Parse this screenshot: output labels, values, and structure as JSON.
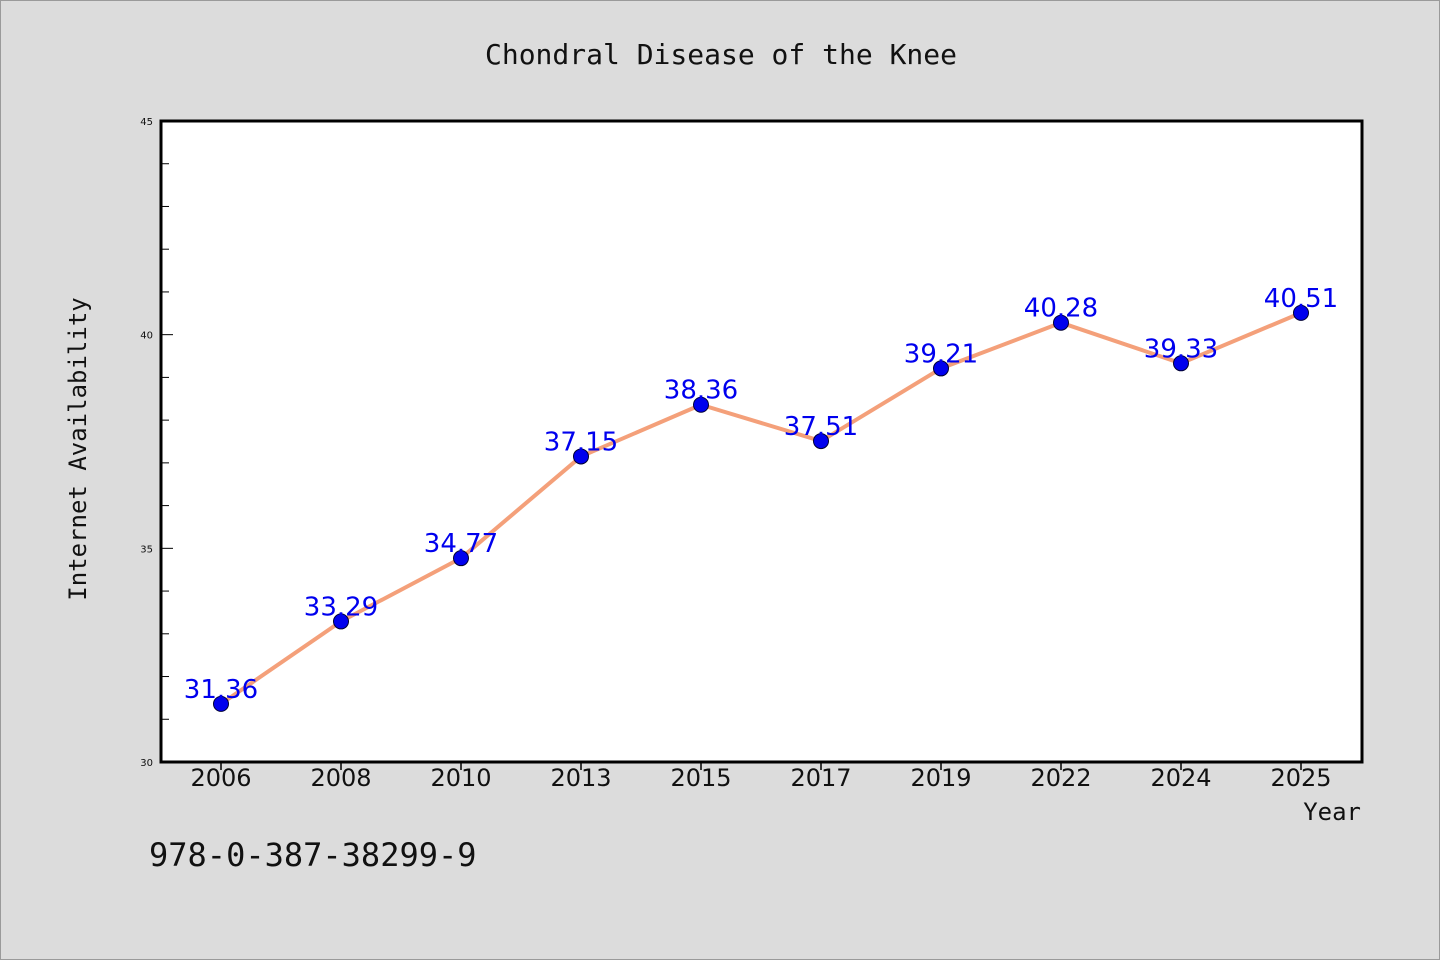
{
  "chart_data": {
    "type": "line",
    "title": "Chondral Disease of the Knee",
    "xlabel": "Year",
    "ylabel": "Internet Availability",
    "categories": [
      "2006",
      "2008",
      "2010",
      "2013",
      "2015",
      "2017",
      "2019",
      "2022",
      "2024",
      "2025"
    ],
    "series": [
      {
        "values": [
          31.36,
          33.29,
          34.77,
          37.15,
          38.36,
          37.51,
          39.21,
          40.28,
          39.33,
          40.51
        ],
        "labels": [
          "31.36",
          "33.29",
          "34.77",
          "37.15",
          "38.36",
          "37.51",
          "39.21",
          "40.28",
          "39.33",
          "40.51"
        ],
        "line_color": "#f4a07a",
        "marker_color": "#0000ee",
        "label_color": "#0000ee"
      }
    ],
    "ylim": [
      30,
      45
    ],
    "y_major_ticks": [
      "30",
      "35",
      "40",
      "45"
    ],
    "y_minor_step": 1,
    "grid": false,
    "legend": "none"
  },
  "footer": {
    "code": "978-0-387-38299-9"
  },
  "colors": {
    "background": "#dcdcdc",
    "plot_background": "#ffffff",
    "axis": "#000000"
  }
}
